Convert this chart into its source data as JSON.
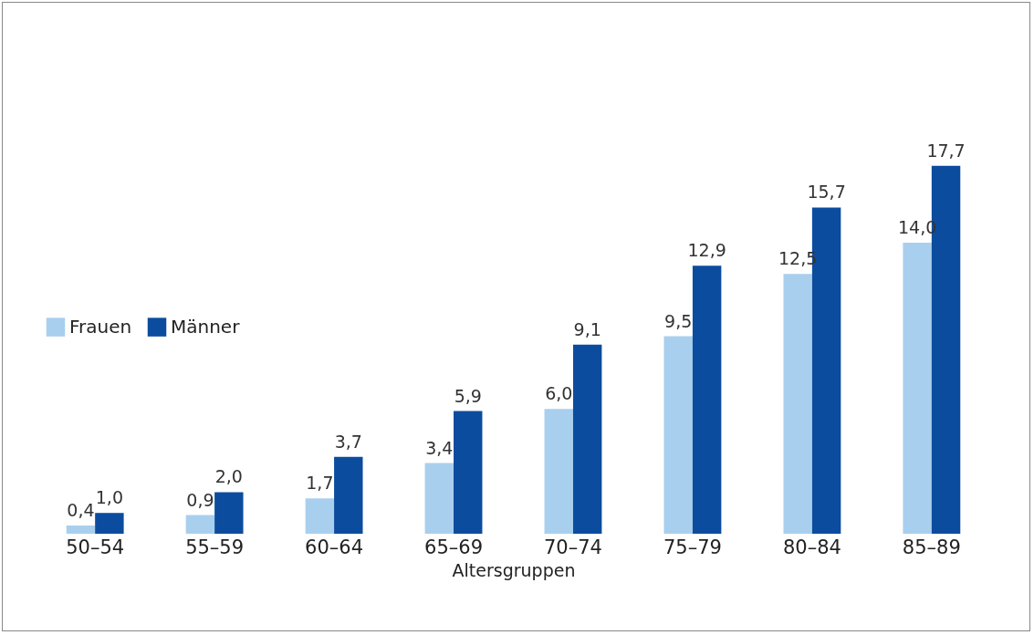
{
  "chart_data": {
    "type": "bar",
    "xlabel": "Altersgruppen",
    "categories": [
      "50–54",
      "55–59",
      "60–64",
      "65–69",
      "70–74",
      "75–79",
      "80–84",
      "85–89"
    ],
    "series": [
      {
        "name": "Frauen",
        "color": "#a9cfee",
        "values": [
          0.4,
          0.9,
          1.7,
          3.4,
          6.0,
          9.5,
          12.5,
          14.0
        ],
        "value_labels": [
          "0,4",
          "0,9",
          "1,7",
          "3,4",
          "6,0",
          "9,5",
          "12,5",
          "14,0"
        ]
      },
      {
        "name": "Männer",
        "color": "#0b4c9e",
        "values": [
          1.0,
          2.0,
          3.7,
          5.9,
          9.1,
          12.9,
          15.7,
          17.7
        ],
        "value_labels": [
          "1,0",
          "2,0",
          "3,7",
          "5,9",
          "9,1",
          "12,9",
          "15,7",
          "17,7"
        ]
      }
    ],
    "legend": "left",
    "grid": false
  }
}
